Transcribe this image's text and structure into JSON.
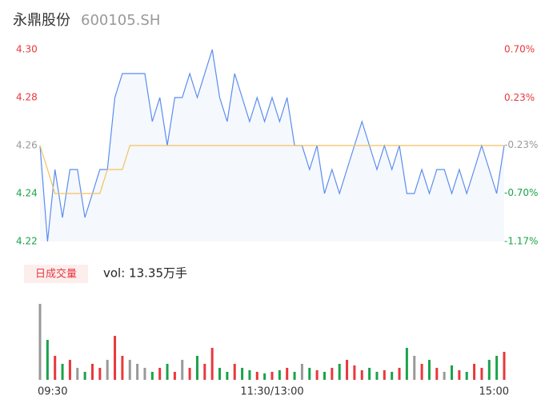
{
  "header": {
    "name": "永鼎股份",
    "code": "600105.SH"
  },
  "chart_data": {
    "type": "line",
    "ylim": [
      4.22,
      4.3
    ],
    "yticks": [
      {
        "value": 4.3,
        "label": "4.30"
      },
      4.28,
      4.26,
      4.24,
      4.22
    ],
    "y2lim": [
      -1.17,
      0.7
    ],
    "y2ticks": [
      {
        "value": 0.7,
        "label": "0.70%"
      },
      {
        "value": 0.23,
        "label": "0.23%"
      },
      {
        "value": -0.23,
        "label": "-0.23%"
      },
      {
        "value": -0.7,
        "label": "-0.70%"
      },
      {
        "value": -1.17,
        "label": "-1.17%"
      }
    ],
    "up_color": "#e8383d",
    "down_color": "#1aa34a",
    "flat_color": "#999999",
    "xlim": [
      0,
      62
    ],
    "xticks": [
      {
        "value": 0,
        "label": "09:30"
      },
      {
        "value": 31,
        "label": "11:30/13:00"
      },
      {
        "value": 62,
        "label": "15:00"
      }
    ],
    "price": {
      "color": "#5b8def",
      "fill": "#f5f8fd",
      "values": [
        4.26,
        4.22,
        4.25,
        4.23,
        4.25,
        4.25,
        4.23,
        4.24,
        4.25,
        4.25,
        4.28,
        4.29,
        4.29,
        4.29,
        4.29,
        4.27,
        4.28,
        4.26,
        4.28,
        4.28,
        4.29,
        4.28,
        4.29,
        4.3,
        4.28,
        4.27,
        4.29,
        4.28,
        4.27,
        4.28,
        4.27,
        4.28,
        4.27,
        4.28,
        4.26,
        4.26,
        4.25,
        4.26,
        4.24,
        4.25,
        4.24,
        4.25,
        4.26,
        4.27,
        4.26,
        4.25,
        4.26,
        4.25,
        4.26,
        4.24,
        4.24,
        4.25,
        4.24,
        4.25,
        4.25,
        4.24,
        4.25,
        4.24,
        4.25,
        4.26,
        4.25,
        4.24,
        4.26
      ]
    },
    "average": {
      "color": "#f3c25d",
      "values": [
        4.26,
        4.25,
        4.24,
        4.24,
        4.24,
        4.24,
        4.24,
        4.24,
        4.24,
        4.25,
        4.25,
        4.25,
        4.26,
        4.26,
        4.26,
        4.26,
        4.26,
        4.26,
        4.26,
        4.26,
        4.26,
        4.26,
        4.26,
        4.26,
        4.26,
        4.26,
        4.26,
        4.26,
        4.26,
        4.26,
        4.26,
        4.26,
        4.26,
        4.26,
        4.26,
        4.26,
        4.26,
        4.26,
        4.26,
        4.26,
        4.26,
        4.26,
        4.26,
        4.26,
        4.26,
        4.26,
        4.26,
        4.26,
        4.26,
        4.26,
        4.26,
        4.26,
        4.26,
        4.26,
        4.26,
        4.26,
        4.26,
        4.26,
        4.26,
        4.26,
        4.26,
        4.26,
        4.26
      ]
    },
    "volume_legend": "日成交量",
    "volume_label": "vol: 13.35万手",
    "volume": {
      "ylim": [
        0,
        100
      ],
      "values": [
        95,
        50,
        30,
        20,
        25,
        15,
        10,
        20,
        15,
        25,
        55,
        30,
        25,
        20,
        15,
        10,
        15,
        20,
        10,
        25,
        15,
        30,
        20,
        40,
        15,
        10,
        20,
        15,
        12,
        10,
        8,
        10,
        12,
        15,
        10,
        20,
        15,
        12,
        10,
        15,
        20,
        25,
        18,
        12,
        15,
        10,
        12,
        10,
        15,
        40,
        30,
        20,
        25,
        15,
        10,
        18,
        12,
        10,
        20,
        15,
        25,
        30,
        35
      ]
    }
  }
}
